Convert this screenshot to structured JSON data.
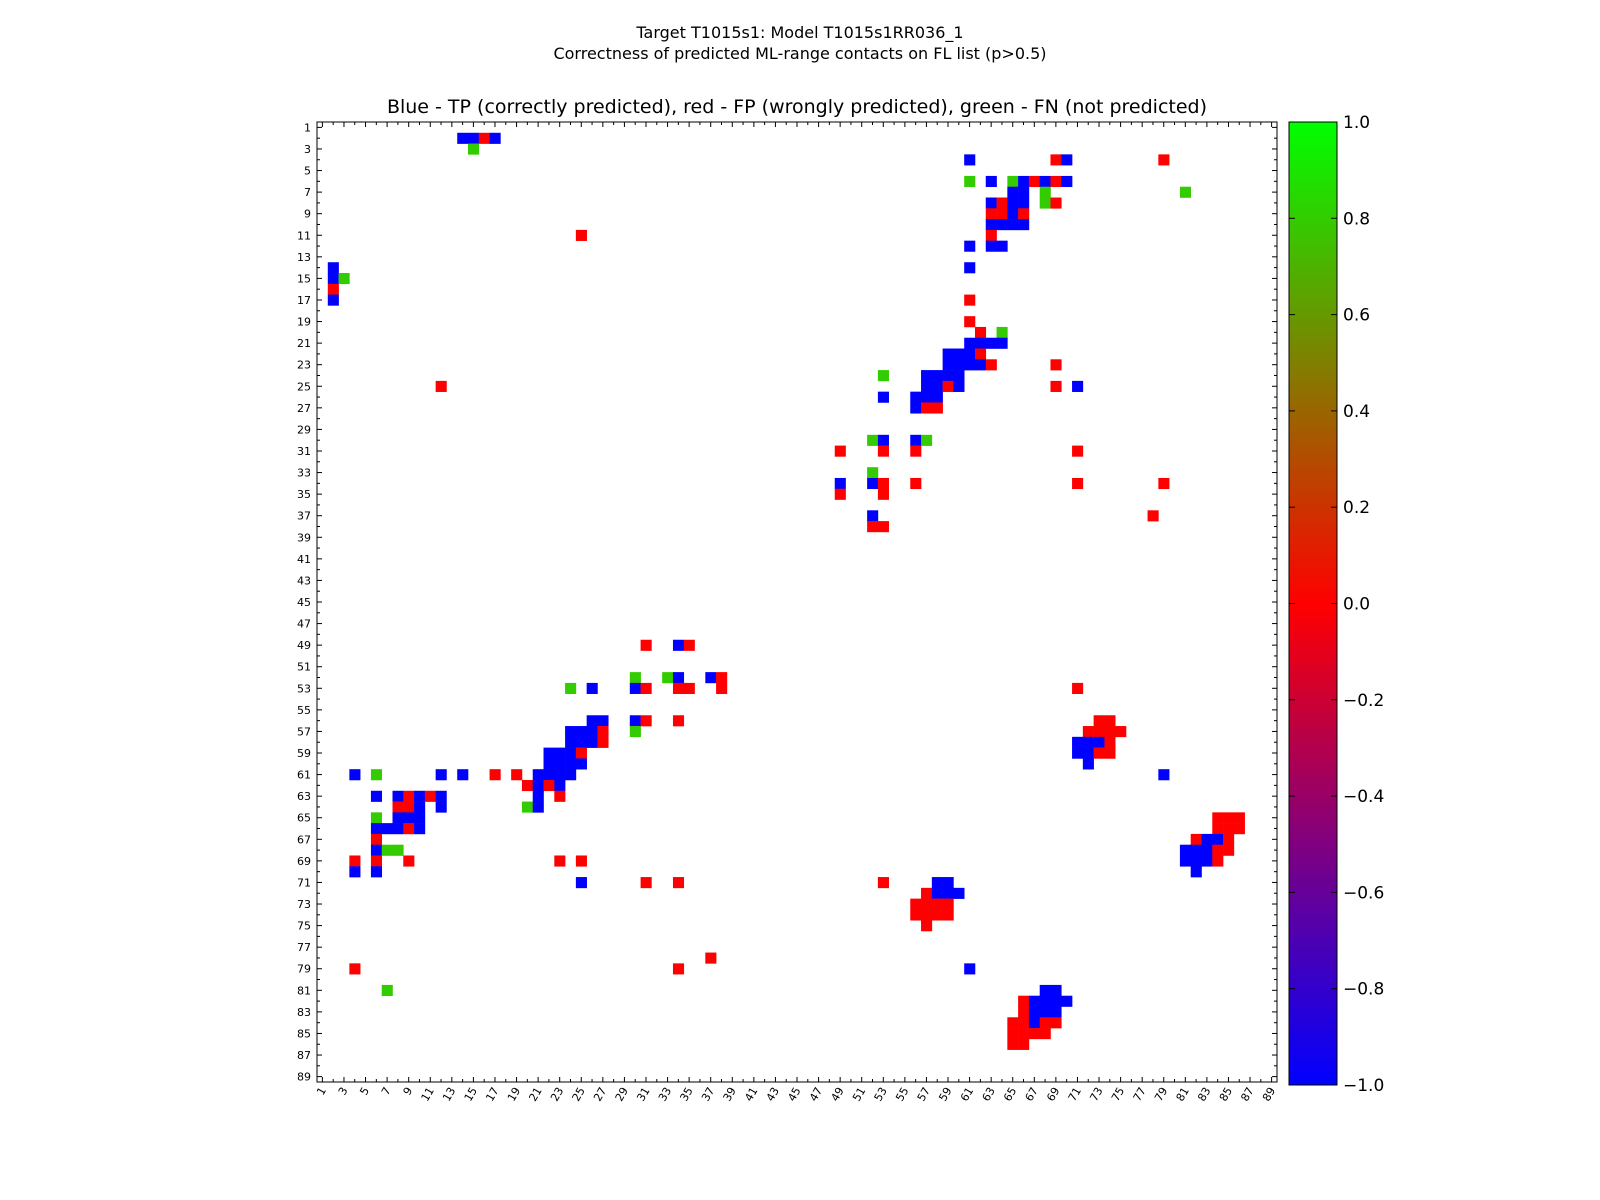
{
  "chart_data": {
    "type": "heatmap",
    "title": "Target T1015s1: Model T1015s1RR036_1",
    "subtitle": "Correctness of predicted ML-range contacts on FL list (p>0.5)",
    "plot_title": "Blue - TP (correctly predicted), red - FP (wrongly predicted), green - FN (not predicted)",
    "xlabel": "",
    "ylabel": "",
    "n": 89,
    "tick_labels": [
      "1",
      "3",
      "5",
      "7",
      "9",
      "11",
      "13",
      "15",
      "17",
      "19",
      "21",
      "23",
      "25",
      "27",
      "29",
      "31",
      "33",
      "35",
      "37",
      "39",
      "41",
      "43",
      "45",
      "47",
      "49",
      "51",
      "53",
      "55",
      "57",
      "59",
      "61",
      "63",
      "65",
      "67",
      "69",
      "71",
      "73",
      "75",
      "77",
      "79",
      "81",
      "83",
      "85",
      "87",
      "89"
    ],
    "colorbar": {
      "min": -1.0,
      "max": 1.0,
      "tick_labels": [
        "1.0",
        "0.8",
        "0.6",
        "0.4",
        "0.2",
        "0.0",
        "−0.2",
        "−0.4",
        "−0.6",
        "−0.8",
        "−1.0"
      ]
    },
    "value_legend": {
      "TP": -1,
      "FP": 0,
      "FN": 1
    },
    "colors": {
      "TP": "#0000ff",
      "FP": "#ff0000",
      "FN": "#33cc00"
    },
    "cells": [
      [
        2,
        14,
        -1
      ],
      [
        2,
        15,
        -1
      ],
      [
        2,
        16,
        0
      ],
      [
        2,
        17,
        -1
      ],
      [
        3,
        15,
        1
      ],
      [
        4,
        61,
        -1
      ],
      [
        4,
        69,
        0
      ],
      [
        4,
        70,
        -1
      ],
      [
        4,
        79,
        0
      ],
      [
        6,
        61,
        1
      ],
      [
        6,
        63,
        -1
      ],
      [
        6,
        65,
        1
      ],
      [
        6,
        66,
        -1
      ],
      [
        6,
        67,
        0
      ],
      [
        6,
        68,
        -1
      ],
      [
        6,
        69,
        0
      ],
      [
        6,
        70,
        -1
      ],
      [
        7,
        65,
        -1
      ],
      [
        7,
        66,
        -1
      ],
      [
        7,
        68,
        1
      ],
      [
        7,
        81,
        1
      ],
      [
        8,
        63,
        -1
      ],
      [
        8,
        64,
        0
      ],
      [
        8,
        65,
        -1
      ],
      [
        8,
        66,
        -1
      ],
      [
        8,
        68,
        1
      ],
      [
        8,
        69,
        0
      ],
      [
        9,
        63,
        0
      ],
      [
        9,
        64,
        0
      ],
      [
        9,
        65,
        -1
      ],
      [
        9,
        66,
        0
      ],
      [
        10,
        63,
        -1
      ],
      [
        10,
        64,
        -1
      ],
      [
        10,
        65,
        -1
      ],
      [
        10,
        66,
        -1
      ],
      [
        11,
        25,
        0
      ],
      [
        11,
        63,
        0
      ],
      [
        12,
        61,
        -1
      ],
      [
        12,
        63,
        -1
      ],
      [
        12,
        64,
        -1
      ],
      [
        14,
        2,
        -1
      ],
      [
        14,
        61,
        -1
      ],
      [
        15,
        2,
        -1
      ],
      [
        15,
        3,
        1
      ],
      [
        16,
        2,
        0
      ],
      [
        17,
        2,
        -1
      ],
      [
        17,
        61,
        0
      ],
      [
        19,
        61,
        0
      ],
      [
        20,
        62,
        0
      ],
      [
        20,
        64,
        1
      ],
      [
        21,
        61,
        -1
      ],
      [
        21,
        62,
        -1
      ],
      [
        21,
        63,
        -1
      ],
      [
        21,
        64,
        -1
      ],
      [
        22,
        59,
        -1
      ],
      [
        22,
        60,
        -1
      ],
      [
        22,
        61,
        -1
      ],
      [
        22,
        62,
        0
      ],
      [
        23,
        59,
        -1
      ],
      [
        23,
        60,
        -1
      ],
      [
        23,
        61,
        -1
      ],
      [
        23,
        62,
        -1
      ],
      [
        23,
        63,
        0
      ],
      [
        23,
        69,
        0
      ],
      [
        24,
        53,
        1
      ],
      [
        24,
        57,
        -1
      ],
      [
        24,
        58,
        -1
      ],
      [
        24,
        59,
        -1
      ],
      [
        24,
        60,
        -1
      ],
      [
        25,
        12,
        0
      ],
      [
        25,
        57,
        -1
      ],
      [
        25,
        58,
        -1
      ],
      [
        25,
        59,
        0
      ],
      [
        25,
        60,
        -1
      ],
      [
        25,
        69,
        0
      ],
      [
        25,
        71,
        -1
      ],
      [
        26,
        53,
        -1
      ],
      [
        26,
        56,
        -1
      ],
      [
        26,
        57,
        -1
      ],
      [
        26,
        58,
        -1
      ],
      [
        27,
        56,
        -1
      ],
      [
        27,
        57,
        0
      ],
      [
        27,
        58,
        0
      ],
      [
        30,
        52,
        1
      ],
      [
        30,
        53,
        -1
      ],
      [
        30,
        56,
        -1
      ],
      [
        30,
        57,
        1
      ],
      [
        31,
        49,
        0
      ],
      [
        31,
        53,
        0
      ],
      [
        31,
        56,
        0
      ],
      [
        31,
        71,
        0
      ],
      [
        33,
        52,
        1
      ],
      [
        34,
        49,
        -1
      ],
      [
        34,
        52,
        -1
      ],
      [
        34,
        53,
        0
      ],
      [
        34,
        56,
        0
      ],
      [
        34,
        71,
        0
      ],
      [
        34,
        79,
        0
      ],
      [
        35,
        49,
        0
      ],
      [
        35,
        53,
        0
      ],
      [
        37,
        52,
        -1
      ],
      [
        37,
        78,
        0
      ],
      [
        38,
        52,
        0
      ],
      [
        38,
        53,
        0
      ],
      [
        49,
        31,
        0
      ],
      [
        49,
        34,
        -1
      ],
      [
        49,
        35,
        0
      ],
      [
        52,
        30,
        1
      ],
      [
        52,
        33,
        1
      ],
      [
        52,
        34,
        -1
      ],
      [
        52,
        37,
        -1
      ],
      [
        52,
        38,
        0
      ],
      [
        53,
        24,
        1
      ],
      [
        53,
        26,
        -1
      ],
      [
        53,
        30,
        -1
      ],
      [
        53,
        31,
        0
      ],
      [
        53,
        34,
        0
      ],
      [
        53,
        35,
        0
      ],
      [
        53,
        38,
        0
      ],
      [
        53,
        71,
        0
      ],
      [
        56,
        26,
        -1
      ],
      [
        56,
        27,
        -1
      ],
      [
        56,
        30,
        -1
      ],
      [
        56,
        31,
        0
      ],
      [
        56,
        34,
        0
      ],
      [
        56,
        73,
        0
      ],
      [
        56,
        74,
        0
      ],
      [
        57,
        24,
        -1
      ],
      [
        57,
        25,
        -1
      ],
      [
        57,
        26,
        -1
      ],
      [
        57,
        27,
        0
      ],
      [
        57,
        30,
        1
      ],
      [
        57,
        72,
        0
      ],
      [
        57,
        73,
        0
      ],
      [
        57,
        74,
        0
      ],
      [
        57,
        75,
        0
      ],
      [
        58,
        24,
        -1
      ],
      [
        58,
        25,
        -1
      ],
      [
        58,
        26,
        -1
      ],
      [
        58,
        27,
        0
      ],
      [
        58,
        71,
        -1
      ],
      [
        58,
        72,
        -1
      ],
      [
        58,
        73,
        -1
      ],
      [
        58,
        74,
        0
      ],
      [
        59,
        22,
        -1
      ],
      [
        59,
        23,
        -1
      ],
      [
        59,
        24,
        -1
      ],
      [
        59,
        25,
        0
      ],
      [
        59,
        71,
        -1
      ],
      [
        59,
        72,
        -1
      ],
      [
        59,
        73,
        0
      ],
      [
        59,
        74,
        0
      ],
      [
        60,
        22,
        -1
      ],
      [
        60,
        23,
        -1
      ],
      [
        60,
        24,
        -1
      ],
      [
        60,
        25,
        -1
      ],
      [
        60,
        72,
        -1
      ],
      [
        61,
        4,
        -1
      ],
      [
        61,
        6,
        1
      ],
      [
        61,
        12,
        -1
      ],
      [
        61,
        14,
        -1
      ],
      [
        61,
        17,
        0
      ],
      [
        61,
        19,
        0
      ],
      [
        61,
        21,
        -1
      ],
      [
        61,
        22,
        -1
      ],
      [
        61,
        23,
        -1
      ],
      [
        61,
        24,
        -1
      ],
      [
        61,
        79,
        -1
      ],
      [
        62,
        20,
        0
      ],
      [
        62,
        21,
        -1
      ],
      [
        62,
        22,
        0
      ],
      [
        62,
        23,
        -1
      ],
      [
        63,
        6,
        -1
      ],
      [
        63,
        8,
        -1
      ],
      [
        63,
        9,
        0
      ],
      [
        63,
        10,
        -1
      ],
      [
        63,
        11,
        0
      ],
      [
        63,
        12,
        -1
      ],
      [
        63,
        21,
        -1
      ],
      [
        63,
        23,
        0
      ],
      [
        64,
        8,
        0
      ],
      [
        64,
        9,
        0
      ],
      [
        64,
        10,
        -1
      ],
      [
        64,
        12,
        -1
      ],
      [
        64,
        20,
        1
      ],
      [
        64,
        21,
        -1
      ],
      [
        65,
        6,
        1
      ],
      [
        65,
        8,
        -1
      ],
      [
        65,
        9,
        -1
      ],
      [
        65,
        10,
        -1
      ],
      [
        65,
        84,
        0
      ],
      [
        65,
        85,
        0
      ],
      [
        65,
        86,
        0
      ],
      [
        66,
        6,
        -1
      ],
      [
        66,
        7,
        -1
      ],
      [
        66,
        8,
        -1
      ],
      [
        66,
        9,
        0
      ],
      [
        66,
        10,
        -1
      ],
      [
        66,
        84,
        0
      ],
      [
        66,
        85,
        0
      ],
      [
        66,
        86,
        0
      ],
      [
        67,
        6,
        0
      ],
      [
        67,
        82,
        0
      ],
      [
        67,
        83,
        -1
      ],
      [
        67,
        84,
        -1
      ],
      [
        67,
        85,
        0
      ],
      [
        68,
        6,
        -1
      ],
      [
        68,
        7,
        1
      ],
      [
        68,
        8,
        1
      ],
      [
        68,
        81,
        -1
      ],
      [
        68,
        82,
        -1
      ],
      [
        68,
        83,
        -1
      ],
      [
        68,
        84,
        0
      ],
      [
        68,
        85,
        0
      ],
      [
        69,
        4,
        0
      ],
      [
        69,
        6,
        0
      ],
      [
        69,
        9,
        0
      ],
      [
        69,
        23,
        0
      ],
      [
        69,
        25,
        0
      ],
      [
        69,
        81,
        -1
      ],
      [
        69,
        82,
        -1
      ],
      [
        69,
        83,
        -1
      ],
      [
        69,
        84,
        0
      ],
      [
        70,
        4,
        -1
      ],
      [
        70,
        6,
        -1
      ],
      [
        70,
        82,
        -1
      ],
      [
        71,
        25,
        -1
      ],
      [
        71,
        31,
        0
      ],
      [
        71,
        34,
        0
      ],
      [
        71,
        53,
        0
      ],
      [
        71,
        58,
        -1
      ],
      [
        71,
        59,
        -1
      ],
      [
        72,
        57,
        0
      ],
      [
        72,
        58,
        -1
      ],
      [
        72,
        59,
        -1
      ],
      [
        72,
        60,
        -1
      ],
      [
        73,
        56,
        0
      ],
      [
        73,
        57,
        0
      ],
      [
        73,
        58,
        0
      ],
      [
        73,
        59,
        0
      ],
      [
        74,
        56,
        0
      ],
      [
        74,
        57,
        0
      ],
      [
        74,
        58,
        0
      ],
      [
        74,
        59,
        0
      ],
      [
        75,
        57,
        0
      ],
      [
        78,
        37,
        0
      ],
      [
        79,
        4,
        0
      ],
      [
        79,
        34,
        0
      ],
      [
        79,
        61,
        -1
      ],
      [
        81,
        7,
        1
      ],
      [
        81,
        68,
        -1
      ],
      [
        81,
        69,
        -1
      ],
      [
        82,
        66,
        0
      ],
      [
        82,
        67,
        -1
      ],
      [
        82,
        68,
        -1
      ],
      [
        82,
        69,
        -1
      ],
      [
        82,
        70,
        -1
      ],
      [
        83,
        66,
        0
      ],
      [
        83,
        67,
        -1
      ],
      [
        83,
        68,
        -1
      ],
      [
        83,
        69,
        -1
      ],
      [
        84,
        65,
        0
      ],
      [
        84,
        66,
        0
      ],
      [
        84,
        67,
        -1
      ],
      [
        84,
        68,
        0
      ],
      [
        84,
        69,
        0
      ],
      [
        85,
        65,
        0
      ],
      [
        85,
        66,
        0
      ],
      [
        85,
        67,
        0
      ],
      [
        85,
        68,
        0
      ],
      [
        86,
        65,
        0
      ],
      [
        86,
        66,
        0
      ]
    ]
  }
}
